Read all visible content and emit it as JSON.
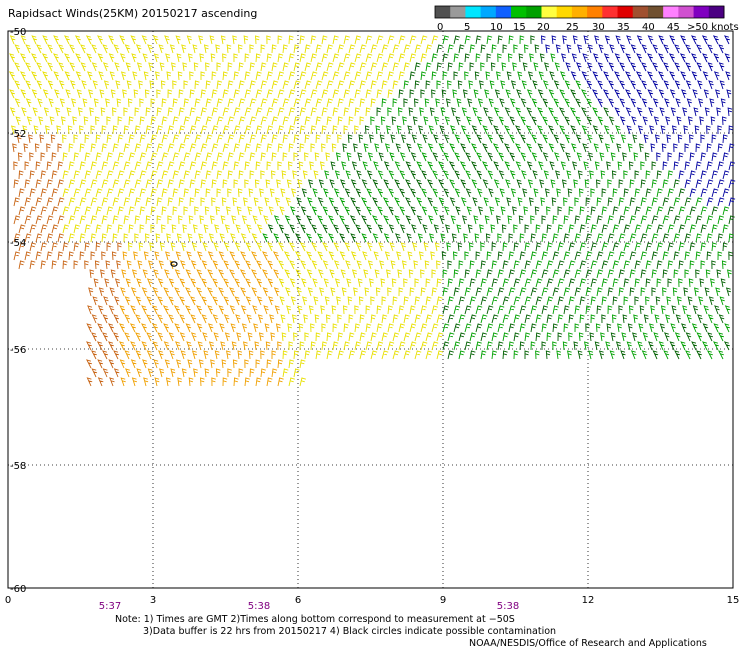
{
  "title": "Rapidsact Winds(25KM) 20150217 ascending",
  "legend": {
    "labels": [
      "0",
      "5",
      "10",
      "15",
      "20",
      "25",
      "30",
      "35",
      "40",
      "45",
      ">50 knots"
    ],
    "colors": [
      "#505050",
      "#9a9a9a",
      "#00e6ff",
      "#00a8ff",
      "#1060ff",
      "#00c000",
      "#00a000",
      "#ffff40",
      "#ffd800",
      "#ffb000",
      "#ff8000",
      "#ff3030",
      "#e00000",
      "#a05030",
      "#705030",
      "#ff80ff",
      "#d050d0",
      "#8000c0",
      "#4b0082"
    ]
  },
  "map": {
    "lon_ticks": [
      "0",
      "3",
      "6",
      "9",
      "12",
      "15"
    ],
    "lat_ticks": [
      "-50",
      "-52",
      "-54",
      "-56",
      "-58",
      "-60"
    ],
    "time_labels": [
      "5:37",
      "5:38",
      "5:38"
    ],
    "time_color": "#800080",
    "vector_colors": {
      "brown": "#c86414",
      "orange": "#f0a000",
      "yellow": "#e8e000",
      "green": "#00a000",
      "dark_green": "#006000",
      "blue": "#0000a0"
    },
    "contamination_marker": "black-circle"
  },
  "notes": {
    "line1": "Note: 1) Times are GMT 2)Times along bottom correspond to measurement at −50S",
    "line2": "3)Data buffer is 22 hrs from 20150217 4) Black circles indicate possible contamination",
    "line3": "NOAA/NESDIS/Office of Research and Applications"
  }
}
